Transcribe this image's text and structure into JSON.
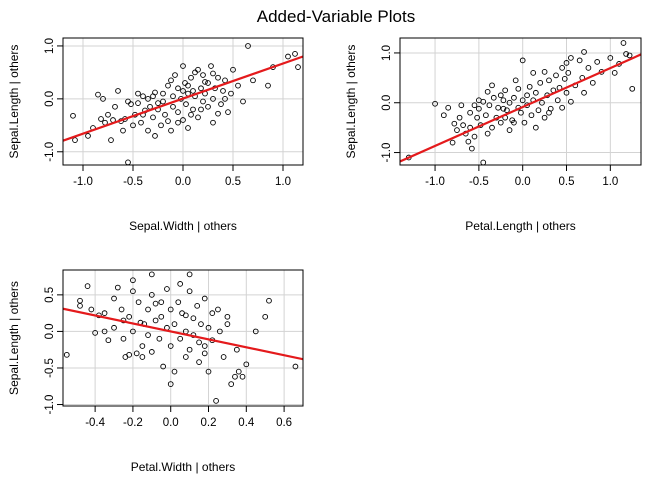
{
  "figure": {
    "title": "Added-Variable Plots"
  },
  "style": {
    "point_color": "#000000",
    "fit_color": "#e41a1c",
    "grid_color": "#d3d3d3"
  },
  "chart_data": [
    {
      "type": "scatter",
      "title": "",
      "xlabel": "Sepal.Width | others",
      "ylabel": "Sepal.Length | others",
      "xlim": [
        -1.2,
        1.2
      ],
      "ylim": [
        -1.25,
        1.15
      ],
      "xticks": [
        -1.0,
        -0.5,
        0.0,
        0.5,
        1.0
      ],
      "yticks": [
        -1.0,
        0.0,
        1.0
      ],
      "xtick_labels": [
        "-1.0",
        "-0.5",
        "0.0",
        "0.5",
        "1.0"
      ],
      "ytick_labels": [
        "-1.0",
        "0.0",
        "1.0"
      ],
      "grid": true,
      "fit_line": {
        "x": [
          -1.2,
          1.2
        ],
        "y": [
          -0.79,
          0.8
        ]
      },
      "points": [
        [
          -1.1,
          -0.32
        ],
        [
          -1.08,
          -0.78
        ],
        [
          -0.95,
          -0.7
        ],
        [
          -0.9,
          -0.55
        ],
        [
          -0.85,
          0.08
        ],
        [
          -0.82,
          -0.38
        ],
        [
          -0.8,
          0.0
        ],
        [
          -0.78,
          -0.45
        ],
        [
          -0.75,
          -0.3
        ],
        [
          -0.72,
          -0.78
        ],
        [
          -0.7,
          -0.4
        ],
        [
          -0.68,
          -0.15
        ],
        [
          -0.65,
          0.15
        ],
        [
          -0.62,
          -0.42
        ],
        [
          -0.6,
          -0.6
        ],
        [
          -0.58,
          -0.38
        ],
        [
          -0.55,
          -1.2
        ],
        [
          -0.55,
          -0.05
        ],
        [
          -0.52,
          -0.1
        ],
        [
          -0.5,
          -0.5
        ],
        [
          -0.48,
          -0.3
        ],
        [
          -0.45,
          -0.08
        ],
        [
          -0.42,
          -0.45
        ],
        [
          -0.4,
          0.05
        ],
        [
          -0.38,
          -0.22
        ],
        [
          -0.35,
          -0.6
        ],
        [
          -0.33,
          -0.15
        ],
        [
          -0.3,
          -0.35
        ],
        [
          -0.3,
          0.05
        ],
        [
          -0.28,
          -0.7
        ],
        [
          -0.25,
          -0.2
        ],
        [
          -0.22,
          -0.5
        ],
        [
          -0.2,
          0.1
        ],
        [
          -0.2,
          -0.05
        ],
        [
          -0.18,
          -0.3
        ],
        [
          -0.15,
          0.25
        ],
        [
          -0.15,
          -0.42
        ],
        [
          -0.12,
          -0.6
        ],
        [
          -0.1,
          0.05
        ],
        [
          -0.1,
          -0.15
        ],
        [
          -0.08,
          0.45
        ],
        [
          -0.05,
          -0.25
        ],
        [
          -0.05,
          0.2
        ],
        [
          -0.02,
          0.0
        ],
        [
          0.0,
          -0.4
        ],
        [
          0.0,
          0.62
        ],
        [
          0.02,
          0.3
        ],
        [
          0.03,
          -0.1
        ],
        [
          0.05,
          0.1
        ],
        [
          0.05,
          -0.55
        ],
        [
          0.08,
          0.4
        ],
        [
          0.1,
          -0.2
        ],
        [
          0.1,
          0.15
        ],
        [
          0.12,
          0.05
        ],
        [
          0.15,
          0.55
        ],
        [
          0.15,
          -0.35
        ],
        [
          0.18,
          0.2
        ],
        [
          0.2,
          -0.05
        ],
        [
          0.2,
          0.45
        ],
        [
          0.22,
          0.1
        ],
        [
          0.25,
          -0.15
        ],
        [
          0.25,
          0.3
        ],
        [
          0.28,
          0.62
        ],
        [
          0.3,
          0.0
        ],
        [
          0.3,
          -0.45
        ],
        [
          0.32,
          0.2
        ],
        [
          0.35,
          0.4
        ],
        [
          0.38,
          -0.1
        ],
        [
          0.4,
          0.15
        ],
        [
          0.42,
          0.35
        ],
        [
          0.45,
          -0.25
        ],
        [
          0.48,
          0.1
        ],
        [
          0.5,
          0.55
        ],
        [
          0.55,
          0.25
        ],
        [
          0.6,
          -0.05
        ],
        [
          0.65,
          1.0
        ],
        [
          0.7,
          0.35
        ],
        [
          0.85,
          0.25
        ],
        [
          0.9,
          0.6
        ],
        [
          1.05,
          0.8
        ],
        [
          1.12,
          0.85
        ],
        [
          1.15,
          0.6
        ],
        [
          -0.45,
          0.1
        ],
        [
          -0.35,
          0.0
        ],
        [
          -0.25,
          -0.08
        ],
        [
          0.0,
          0.15
        ],
        [
          0.05,
          0.25
        ],
        [
          -0.4,
          -0.3
        ],
        [
          0.3,
          0.48
        ],
        [
          0.42,
          0.0
        ],
        [
          0.08,
          -0.3
        ],
        [
          -0.12,
          0.35
        ],
        [
          0.18,
          -0.2
        ],
        [
          -0.05,
          -0.45
        ],
        [
          0.35,
          -0.28
        ],
        [
          0.12,
          0.5
        ],
        [
          -0.28,
          0.12
        ],
        [
          0.22,
          0.32
        ]
      ]
    },
    {
      "type": "scatter",
      "title": "",
      "xlabel": "Petal.Length | others",
      "ylabel": "Sepal.Length  | others",
      "xlim": [
        -1.4,
        1.35
      ],
      "ylim": [
        -1.25,
        1.3
      ],
      "xticks": [
        -1.0,
        -0.5,
        0.0,
        0.5,
        1.0
      ],
      "yticks": [
        -1.0,
        0.0,
        1.0
      ],
      "xtick_labels": [
        "-1.0",
        "-0.5",
        "0.0",
        "0.5",
        "1.0"
      ],
      "ytick_labels": [
        "-1.0",
        "0.0",
        "1.0"
      ],
      "grid": true,
      "fit_line": {
        "x": [
          -1.4,
          1.35
        ],
        "y": [
          -1.18,
          0.97
        ]
      },
      "points": [
        [
          -1.3,
          -1.1
        ],
        [
          -1.0,
          -0.02
        ],
        [
          -0.9,
          -0.25
        ],
        [
          -0.85,
          -0.1
        ],
        [
          -0.8,
          -0.8
        ],
        [
          -0.78,
          -0.42
        ],
        [
          -0.75,
          -0.55
        ],
        [
          -0.72,
          -0.3
        ],
        [
          -0.7,
          -0.05
        ],
        [
          -0.68,
          -0.45
        ],
        [
          -0.65,
          -0.62
        ],
        [
          -0.62,
          -0.78
        ],
        [
          -0.6,
          -0.5
        ],
        [
          -0.58,
          -0.92
        ],
        [
          -0.55,
          -0.68
        ],
        [
          -0.52,
          -0.3
        ],
        [
          -0.5,
          -0.12
        ],
        [
          -0.5,
          0.05
        ],
        [
          -0.48,
          -0.45
        ],
        [
          -0.45,
          -1.2
        ],
        [
          -0.45,
          0.02
        ],
        [
          -0.42,
          -0.25
        ],
        [
          -0.4,
          -0.62
        ],
        [
          -0.38,
          -0.05
        ],
        [
          -0.35,
          -0.5
        ],
        [
          -0.33,
          0.1
        ],
        [
          -0.3,
          -0.3
        ],
        [
          -0.28,
          -0.1
        ],
        [
          -0.25,
          0.15
        ],
        [
          -0.25,
          -0.4
        ],
        [
          -0.22,
          0.05
        ],
        [
          -0.2,
          -0.3
        ],
        [
          -0.2,
          0.25
        ],
        [
          -0.18,
          -0.15
        ],
        [
          -0.15,
          0.0
        ],
        [
          -0.15,
          -0.55
        ],
        [
          -0.12,
          -0.35
        ],
        [
          -0.1,
          0.1
        ],
        [
          -0.08,
          0.45
        ],
        [
          -0.05,
          -0.1
        ],
        [
          -0.05,
          0.28
        ],
        [
          -0.02,
          -0.2
        ],
        [
          0.0,
          0.05
        ],
        [
          0.0,
          0.85
        ],
        [
          0.02,
          -0.4
        ],
        [
          0.05,
          0.15
        ],
        [
          0.05,
          -0.05
        ],
        [
          0.08,
          0.32
        ],
        [
          0.1,
          -0.25
        ],
        [
          0.12,
          0.05
        ],
        [
          0.15,
          -0.5
        ],
        [
          0.15,
          0.2
        ],
        [
          0.18,
          -0.15
        ],
        [
          0.2,
          0.4
        ],
        [
          0.22,
          0.0
        ],
        [
          0.25,
          0.62
        ],
        [
          0.25,
          -0.3
        ],
        [
          0.28,
          0.15
        ],
        [
          0.3,
          0.45
        ],
        [
          0.32,
          -0.12
        ],
        [
          0.35,
          0.25
        ],
        [
          0.38,
          0.55
        ],
        [
          0.4,
          0.05
        ],
        [
          0.42,
          0.3
        ],
        [
          0.45,
          -0.1
        ],
        [
          0.48,
          0.48
        ],
        [
          0.5,
          0.2
        ],
        [
          0.5,
          0.8
        ],
        [
          0.52,
          0.6
        ],
        [
          0.55,
          0.9
        ],
        [
          0.55,
          0.02
        ],
        [
          0.6,
          0.35
        ],
        [
          0.65,
          0.85
        ],
        [
          0.68,
          0.5
        ],
        [
          0.7,
          1.02
        ],
        [
          0.75,
          0.7
        ],
        [
          0.8,
          0.4
        ],
        [
          0.85,
          0.82
        ],
        [
          0.9,
          0.62
        ],
        [
          1.0,
          0.9
        ],
        [
          1.05,
          0.6
        ],
        [
          1.1,
          0.78
        ],
        [
          1.15,
          1.2
        ],
        [
          1.18,
          0.98
        ],
        [
          1.22,
          0.95
        ],
        [
          1.25,
          0.28
        ],
        [
          -0.35,
          0.35
        ],
        [
          -0.1,
          -0.4
        ],
        [
          0.3,
          -0.2
        ],
        [
          0.12,
          0.6
        ],
        [
          -0.6,
          -0.2
        ],
        [
          -0.4,
          0.22
        ],
        [
          0.7,
          0.2
        ],
        [
          0.45,
          0.7
        ],
        [
          -0.55,
          -0.05
        ],
        [
          -0.22,
          -0.12
        ]
      ]
    },
    {
      "type": "scatter",
      "title": "",
      "xlabel": "Petal.Width | others",
      "ylabel": "Sepal.Length  | others",
      "xlim": [
        -0.57,
        0.7
      ],
      "ylim": [
        -1.02,
        0.84
      ],
      "xticks": [
        -0.4,
        -0.2,
        0.0,
        0.2,
        0.4,
        0.6
      ],
      "yticks": [
        -1.0,
        -0.5,
        0.0,
        0.5
      ],
      "xtick_labels": [
        "-0.4",
        "-0.2",
        "0.0",
        "0.2",
        "0.4",
        "0.6"
      ],
      "ytick_labels": [
        "-1.0",
        "-0.5",
        "0.0",
        "0.5"
      ],
      "grid": true,
      "fit_line": {
        "x": [
          -0.57,
          0.7
        ],
        "y": [
          0.31,
          -0.38
        ]
      },
      "points": [
        [
          -0.55,
          -0.32
        ],
        [
          -0.48,
          0.42
        ],
        [
          -0.48,
          0.35
        ],
        [
          -0.44,
          0.62
        ],
        [
          -0.42,
          0.3
        ],
        [
          -0.4,
          -0.02
        ],
        [
          -0.38,
          0.22
        ],
        [
          -0.35,
          0.0
        ],
        [
          -0.33,
          -0.12
        ],
        [
          -0.3,
          0.45
        ],
        [
          -0.3,
          0.05
        ],
        [
          -0.28,
          0.6
        ],
        [
          -0.26,
          0.3
        ],
        [
          -0.25,
          -0.1
        ],
        [
          -0.24,
          -0.35
        ],
        [
          -0.22,
          0.2
        ],
        [
          -0.22,
          -0.32
        ],
        [
          -0.2,
          0.55
        ],
        [
          -0.2,
          0.0
        ],
        [
          -0.18,
          -0.3
        ],
        [
          -0.17,
          0.4
        ],
        [
          -0.16,
          0.12
        ],
        [
          -0.15,
          -0.2
        ],
        [
          -0.14,
          0.1
        ],
        [
          -0.12,
          0.3
        ],
        [
          -0.12,
          -0.05
        ],
        [
          -0.1,
          0.5
        ],
        [
          -0.1,
          -0.28
        ],
        [
          -0.08,
          0.15
        ],
        [
          -0.08,
          0.38
        ],
        [
          -0.06,
          -0.1
        ],
        [
          -0.05,
          0.2
        ],
        [
          -0.04,
          -0.48
        ],
        [
          -0.02,
          0.58
        ],
        [
          -0.02,
          0.05
        ],
        [
          0.0,
          -0.2
        ],
        [
          0.0,
          0.3
        ],
        [
          0.02,
          -0.55
        ],
        [
          0.02,
          0.1
        ],
        [
          0.04,
          0.4
        ],
        [
          0.05,
          -0.1
        ],
        [
          0.06,
          0.25
        ],
        [
          0.08,
          -0.35
        ],
        [
          0.08,
          0.0
        ],
        [
          0.1,
          0.55
        ],
        [
          0.1,
          -0.25
        ],
        [
          0.12,
          0.18
        ],
        [
          0.12,
          -0.05
        ],
        [
          0.14,
          0.35
        ],
        [
          0.15,
          -0.42
        ],
        [
          0.16,
          0.1
        ],
        [
          0.18,
          -0.2
        ],
        [
          0.18,
          0.45
        ],
        [
          0.2,
          0.05
        ],
        [
          0.2,
          -0.55
        ],
        [
          0.22,
          0.25
        ],
        [
          0.22,
          -0.12
        ],
        [
          0.24,
          -0.95
        ],
        [
          0.26,
          0.0
        ],
        [
          0.28,
          -0.35
        ],
        [
          0.3,
          0.2
        ],
        [
          0.32,
          -0.72
        ],
        [
          0.34,
          -0.62
        ],
        [
          0.36,
          -0.55
        ],
        [
          0.38,
          -0.62
        ],
        [
          0.4,
          -0.45
        ],
        [
          0.45,
          0.0
        ],
        [
          0.5,
          0.2
        ],
        [
          0.52,
          0.42
        ],
        [
          0.66,
          -0.48
        ],
        [
          -0.1,
          0.78
        ],
        [
          0.1,
          0.78
        ],
        [
          -0.2,
          0.7
        ],
        [
          0.05,
          0.65
        ],
        [
          0.0,
          -0.72
        ],
        [
          -0.15,
          -0.35
        ],
        [
          0.15,
          -0.15
        ],
        [
          0.3,
          0.1
        ],
        [
          -0.35,
          0.25
        ],
        [
          0.25,
          0.3
        ],
        [
          -0.05,
          0.4
        ],
        [
          0.18,
          -0.3
        ],
        [
          -0.25,
          0.15
        ],
        [
          0.35,
          -0.25
        ],
        [
          0.08,
          0.22
        ]
      ]
    }
  ]
}
